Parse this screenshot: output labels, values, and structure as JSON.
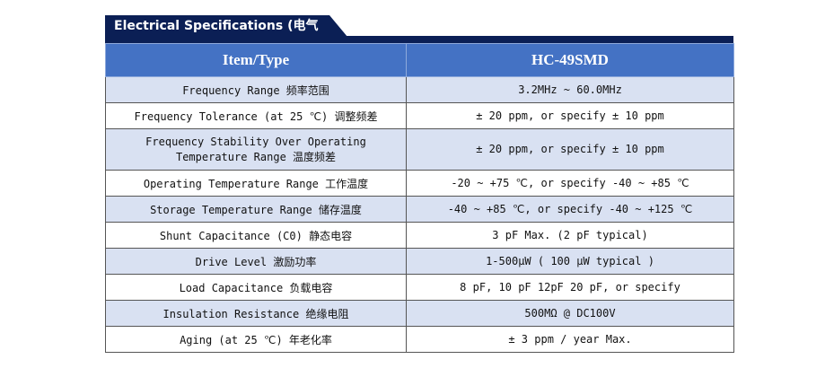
{
  "title": "Electrical Specifications (电气参数)",
  "header": {
    "item": "Item/Type",
    "type": "HC-49SMD"
  },
  "rows": [
    {
      "item": "Frequency  Range  频率范围",
      "value": "3.2MHz ~ 60.0MHz"
    },
    {
      "item": "Frequency Tolerance (at 25 ℃) 调整频差",
      "value": "± 20 ppm, or specify  ± 10 ppm"
    },
    {
      "item": "Frequency Stability Over Operating Temperature Range 温度频差",
      "value": "± 20 ppm, or specify  ± 10 ppm"
    },
    {
      "item": "Operating Temperature Range 工作温度",
      "value": "-20 ~ +75 ℃, or specify -40 ~ +85 ℃"
    },
    {
      "item": "Storage Temperature Range 储存温度",
      "value": "-40 ~ +85 ℃, or specify -40 ~ +125 ℃"
    },
    {
      "item": "Shunt Capacitance (C0) 静态电容",
      "value": "3 pF Max. (2 pF typical)"
    },
    {
      "item": "Drive Level 激励功率",
      "value": "1-500μW (  100 μW  typical )"
    },
    {
      "item": "Load Capacitance 负载电容",
      "value": "8 pF, 10 pF 12pF 20 pF, or specify"
    },
    {
      "item": "Insulation Resistance 绝缘电阻",
      "value": "500MΩ @ DC100V"
    },
    {
      "item": "Aging (at 25 ℃) 年老化率",
      "value": "± 3 ppm / year Max."
    }
  ]
}
